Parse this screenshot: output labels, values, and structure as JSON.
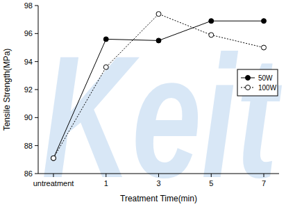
{
  "chart_data": {
    "type": "line",
    "annotations": [
      "Keit"
    ],
    "x_label": "Treatment Time(min)",
    "y_label": "Tensile Strength(MPa)",
    "categories": [
      "untreatment",
      "1",
      "3",
      "5",
      "7"
    ],
    "series": [
      {
        "name": "50W",
        "color": "#000000",
        "marker": "filled-circle",
        "line_style": "solid",
        "values": [
          87.1,
          95.6,
          95.5,
          96.9,
          96.9
        ]
      },
      {
        "name": "100W",
        "color": "#000000",
        "marker": "open-circle",
        "line_style": "dotted",
        "values": [
          87.1,
          93.6,
          97.4,
          95.9,
          95.0
        ]
      }
    ],
    "ylim": [
      86,
      98
    ],
    "yticks": [
      86,
      88,
      90,
      92,
      94,
      96,
      98
    ],
    "legend": "right",
    "grid": false
  }
}
